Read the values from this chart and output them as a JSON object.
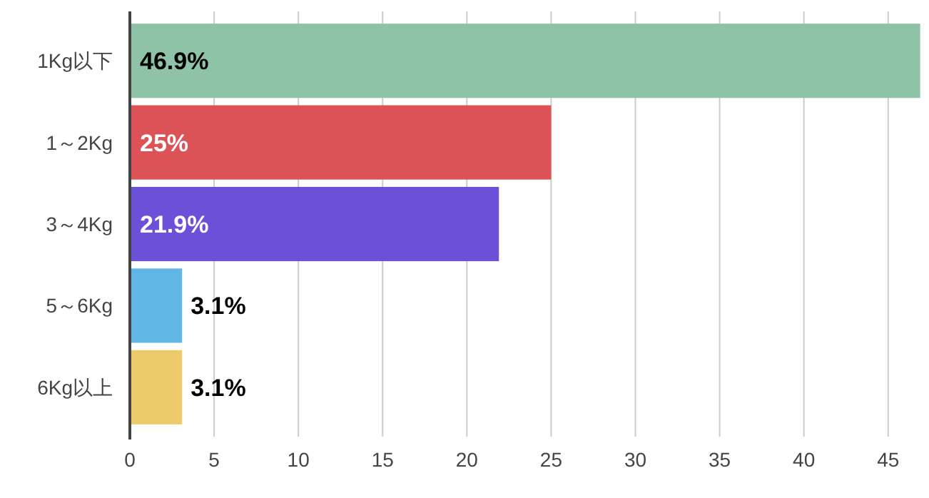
{
  "chart_data": {
    "type": "bar",
    "orientation": "horizontal",
    "categories": [
      "1Kg以下",
      "1～2Kg",
      "3～4Kg",
      "5～6Kg",
      "6Kg以上"
    ],
    "values": [
      46.9,
      25,
      21.9,
      3.1,
      3.1
    ],
    "value_labels": [
      "46.9%",
      "25%",
      "21.9%",
      "3.1%",
      "3.1%"
    ],
    "colors": [
      "#8ec3a7",
      "#db5356",
      "#6b51d7",
      "#60b6e4",
      "#edca6b"
    ],
    "xlim": [
      0,
      47
    ],
    "xticks": [
      0,
      5,
      10,
      15,
      20,
      25,
      30,
      35,
      40,
      45
    ],
    "grid": "x"
  }
}
